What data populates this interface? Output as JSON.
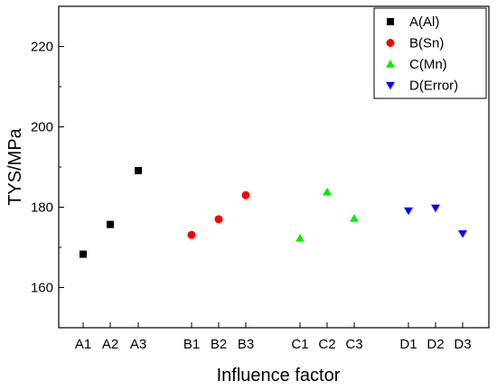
{
  "chart_data": {
    "type": "scatter",
    "title": "",
    "xlabel": "Influence factor",
    "ylabel": "TYS/MPa",
    "ylim": [
      150,
      230
    ],
    "yticks": [
      160,
      180,
      200,
      220
    ],
    "grid": false,
    "legend_position": "top-right",
    "categories": [
      "A1",
      "A2",
      "A3",
      "B1",
      "B2",
      "B3",
      "C1",
      "C2",
      "C3",
      "D1",
      "D2",
      "D3"
    ],
    "series": [
      {
        "name": "A(Al)",
        "marker": "square",
        "color": "#000000",
        "x": [
          "A1",
          "A2",
          "A3"
        ],
        "values": [
          168.3,
          175.7,
          189.1
        ]
      },
      {
        "name": "B(Sn)",
        "marker": "circle",
        "color": "#ff0000",
        "x": [
          "B1",
          "B2",
          "B3"
        ],
        "values": [
          173.1,
          177.0,
          183.0
        ]
      },
      {
        "name": "C(Mn)",
        "marker": "triangle-up",
        "color": "#00ee00",
        "x": [
          "C1",
          "C2",
          "C3"
        ],
        "values": [
          172.3,
          183.8,
          177.2
        ]
      },
      {
        "name": "D(Error)",
        "marker": "triangle-down",
        "color": "#0000ff",
        "x": [
          "D1",
          "D2",
          "D3"
        ],
        "values": [
          179.1,
          179.8,
          173.4
        ]
      }
    ]
  }
}
